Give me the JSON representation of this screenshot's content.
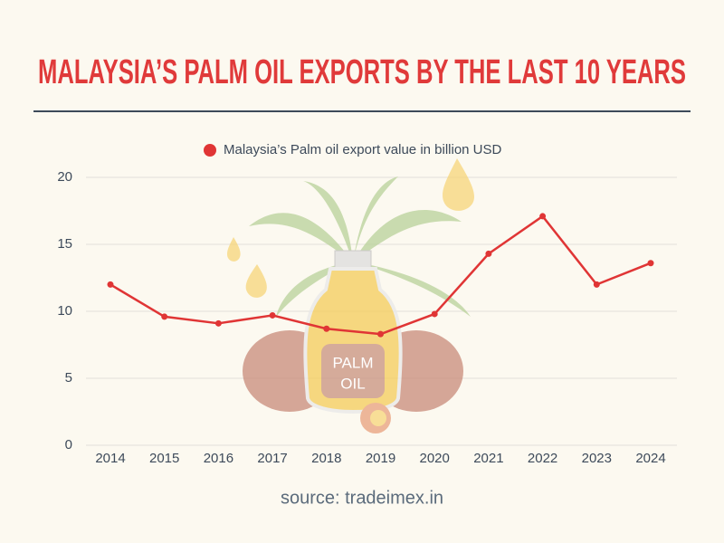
{
  "chart_data": {
    "type": "line",
    "title": "MALAYSIA’S PALM OIL EXPORTS BY THE LAST 10 YEARS",
    "categories": [
      "2014",
      "2015",
      "2016",
      "2017",
      "2018",
      "2019",
      "2020",
      "2021",
      "2022",
      "2023",
      "2024"
    ],
    "series": [
      {
        "name": "Malaysia’s Palm oil export value in billion USD",
        "color": "#e03535",
        "values": [
          12.0,
          9.6,
          9.1,
          9.7,
          8.7,
          8.3,
          9.8,
          14.3,
          17.1,
          12.0,
          13.6
        ]
      }
    ],
    "ylim": [
      0,
      20
    ],
    "yticks": [
      0,
      5,
      10,
      15,
      20
    ],
    "grid": true,
    "annotations": [
      "PALM",
      "OIL"
    ],
    "source": "source: tradeimex.in"
  }
}
